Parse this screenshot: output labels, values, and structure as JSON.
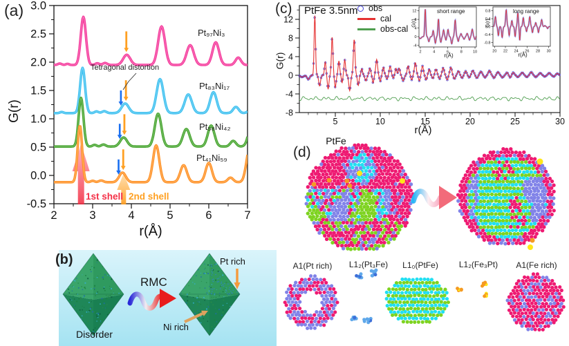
{
  "panels": {
    "a": {
      "tag": "(a)",
      "annotations": [
        {
          "text": "Tetragonal distortion"
        },
        {
          "text": "1st shell",
          "r": 2.7
        },
        {
          "text": "2nd shell",
          "r": 3.8
        }
      ]
    },
    "b": {
      "tag": "(b)",
      "rmc": "RMC",
      "disorder": "Disorder",
      "pt_rich": "Pt rich",
      "ni_rich": "Ni rich"
    },
    "c": {
      "tag": "(c)"
    },
    "d": {
      "tag": "(d)",
      "title": "PtFe",
      "cluster_labels": [
        "A1(Pt rich)",
        "L1₂(Pt₃Fe)",
        "L1₀(PtFe)",
        "L1₂(Fe₃Pt)",
        "A1(Fe rich)"
      ]
    }
  },
  "colors": {
    "pink_curve": "#f5399b",
    "cyan_curve": "#3cc0f0",
    "green_curve": "#44a42c",
    "orange_curve": "#ff9022",
    "obs_blue": "#4444d8",
    "cal_red": "#e53131",
    "diff_green": "#4f9e4f",
    "arrow_blue": "#1a6ff0",
    "arrow_orange": "#ffa022",
    "shell1_red": "#f43047",
    "shell2_orange": "#ffa022",
    "sphere_magenta": "#ee1a72",
    "sphere_periwinkle": "#8183e8",
    "sphere_green": "#7ed321",
    "sphere_cyan": "#22dff2",
    "sphere_orange": "#f59a23",
    "sphere_yellow": "#ffe619",
    "sphere_lightblue": "#5fa8ea",
    "sphere_blue": "#3d6fd8",
    "panel_b_bg_top": "#daf4fb",
    "panel_b_bg_bottom": "#a5e3f2"
  },
  "chart_data": [
    {
      "id": "panel_a",
      "type": "line",
      "title": "",
      "xlabel": "r(Å)",
      "ylabel": "G(r)",
      "xlim": [
        2,
        7
      ],
      "ylim": [
        -0.5,
        3.0
      ],
      "x_ticks": [
        [
          2,
          "2"
        ],
        [
          3,
          "3"
        ],
        [
          4,
          "4"
        ],
        [
          5,
          "5"
        ],
        [
          6,
          "6"
        ],
        [
          7,
          "7"
        ]
      ],
      "y_ticks": [
        [
          3.0,
          "3.0"
        ],
        [
          2.5,
          "2.5"
        ],
        [
          2.0,
          "2.0"
        ],
        [
          1.5,
          "1.5"
        ],
        [
          1.0,
          "1.0"
        ],
        [
          0.5,
          "0.5"
        ],
        [
          0.0,
          "0.0"
        ],
        [
          -0.5,
          "-0.5"
        ]
      ],
      "legend_position": "none",
      "grid": false,
      "series": [
        {
          "name": "Pt₉₇Ni₃",
          "offset": 1.95,
          "color_key": "pink_curve",
          "arrows": {
            "orange": 3.87
          },
          "peaks": [
            [
              2.76,
              0.85,
              0.095
            ],
            [
              2.15,
              0.025,
              0.07
            ],
            [
              2.35,
              0.02,
              0.06
            ],
            [
              3.12,
              0.03,
              0.07
            ],
            [
              3.32,
              0.035,
              0.08
            ],
            [
              3.88,
              0.18,
              0.13
            ],
            [
              4.78,
              0.68,
              0.125
            ],
            [
              5.52,
              0.35,
              0.13
            ],
            [
              6.18,
              0.4,
              0.12
            ],
            [
              6.76,
              0.13,
              0.1
            ]
          ]
        },
        {
          "name": "Pt₈₃Ni₁₇",
          "offset": 1.1,
          "color_key": "cyan_curve",
          "arrows": {
            "blue": 3.73,
            "orange": 3.86
          },
          "peaks": [
            [
              2.74,
              0.8,
              0.09
            ],
            [
              2.2,
              0.02,
              0.06
            ],
            [
              3.1,
              0.03,
              0.07
            ],
            [
              3.3,
              0.035,
              0.08
            ],
            [
              3.84,
              0.17,
              0.13
            ],
            [
              4.74,
              0.6,
              0.125
            ],
            [
              5.47,
              0.33,
              0.13
            ],
            [
              6.12,
              0.37,
              0.12
            ],
            [
              6.7,
              0.11,
              0.1
            ],
            [
              7.2,
              0.35,
              0.13
            ]
          ]
        },
        {
          "name": "Pt₅₈Ni₄₂",
          "offset": 0.51,
          "color_key": "green_curve",
          "arrows": {
            "blue": 3.7,
            "orange": 3.82
          },
          "peaks": [
            [
              2.7,
              0.86,
              0.088
            ],
            [
              3.05,
              0.03,
              0.07
            ],
            [
              3.28,
              0.035,
              0.08
            ],
            [
              3.8,
              0.16,
              0.125
            ],
            [
              4.69,
              0.58,
              0.12
            ],
            [
              5.42,
              0.31,
              0.125
            ],
            [
              6.06,
              0.37,
              0.12
            ],
            [
              6.63,
              0.1,
              0.1
            ],
            [
              7.14,
              0.55,
              0.13
            ]
          ]
        },
        {
          "name": "Pt₄₁Ni₅₉",
          "offset": -0.12,
          "color_key": "orange_curve",
          "arrows": {
            "blue": 3.67,
            "orange": 3.79
          },
          "peaks": [
            [
              2.67,
              1.0,
              0.082
            ],
            [
              3.0,
              0.025,
              0.07
            ],
            [
              3.22,
              0.03,
              0.08
            ],
            [
              3.77,
              0.17,
              0.12
            ],
            [
              4.64,
              0.65,
              0.115
            ],
            [
              5.35,
              0.3,
              0.12
            ],
            [
              6.0,
              0.34,
              0.115
            ],
            [
              6.56,
              0.08,
              0.1
            ],
            [
              7.06,
              0.62,
              0.12
            ]
          ]
        }
      ]
    },
    {
      "id": "panel_c",
      "type": "line",
      "title": "PtFe 3.5nm",
      "xlabel": "r(Å)",
      "ylabel": "G(r)",
      "xlim": [
        1,
        30
      ],
      "ylim": [
        -8.5,
        15.0
      ],
      "x_ticks": [
        [
          5,
          "5"
        ],
        [
          10,
          "10"
        ],
        [
          15,
          "15"
        ],
        [
          20,
          "20"
        ],
        [
          25,
          "25"
        ],
        [
          30,
          "30"
        ]
      ],
      "y_ticks": [
        [
          12,
          "12"
        ],
        [
          8,
          "8"
        ],
        [
          4,
          "4"
        ],
        [
          0,
          "0"
        ],
        [
          -4,
          "-4"
        ],
        [
          -8,
          "-8"
        ]
      ],
      "legend_position": "top-center",
      "series": [
        {
          "name": "obs",
          "type": "scatter",
          "color_key": "obs_blue"
        },
        {
          "name": "cal",
          "type": "line",
          "color_key": "cal_red",
          "peaks": [
            [
              1.3,
              -0.4,
              0.25
            ],
            [
              2.0,
              -0.9,
              0.2
            ],
            [
              2.72,
              12.8,
              0.11
            ],
            [
              3.25,
              -2.3,
              0.14
            ],
            [
              3.88,
              2.8,
              0.12
            ],
            [
              4.2,
              -3.0,
              0.12
            ],
            [
              4.65,
              8.2,
              0.12
            ],
            [
              5.0,
              -2.6,
              0.12
            ],
            [
              5.4,
              3.1,
              0.12
            ],
            [
              5.75,
              -1.6,
              0.1
            ],
            [
              6.05,
              3.3,
              0.12
            ],
            [
              6.6,
              -3.3,
              0.14
            ],
            [
              7.1,
              7.7,
              0.13
            ],
            [
              7.55,
              -2.2,
              0.12
            ],
            [
              7.95,
              1.4,
              0.12
            ],
            [
              8.4,
              -1.2,
              0.14
            ],
            [
              8.85,
              1.5,
              0.14
            ],
            [
              9.2,
              -1.6,
              0.12
            ],
            [
              9.6,
              3.4,
              0.14
            ],
            [
              10.0,
              -1.3,
              0.12
            ],
            [
              10.35,
              1.7,
              0.13
            ],
            [
              10.75,
              -0.8,
              0.12
            ],
            [
              11.1,
              1.9,
              0.14
            ],
            [
              11.45,
              -0.6,
              0.1
            ],
            [
              11.75,
              1.5,
              0.12
            ],
            [
              12.1,
              1.5,
              0.14
            ],
            [
              12.55,
              -1.2,
              0.16
            ],
            [
              13.1,
              2.0,
              0.15
            ],
            [
              13.5,
              -1.0,
              0.12
            ],
            [
              13.9,
              2.7,
              0.15
            ],
            [
              14.35,
              -1.2,
              0.12
            ],
            [
              14.7,
              2.0,
              0.14
            ],
            [
              15.1,
              -1.0,
              0.12
            ],
            [
              15.45,
              1.3,
              0.14
            ],
            [
              15.85,
              -0.7,
              0.12
            ],
            [
              16.2,
              1.3,
              0.15
            ],
            [
              16.6,
              -0.8,
              0.13
            ],
            [
              17.0,
              1.6,
              0.16
            ],
            [
              17.45,
              -1.0,
              0.13
            ],
            [
              17.85,
              1.7,
              0.16
            ],
            [
              18.25,
              -0.8,
              0.14
            ],
            [
              18.7,
              0.9,
              0.16
            ],
            [
              19.1,
              -0.6,
              0.14
            ],
            [
              19.5,
              0.9,
              0.16
            ],
            [
              19.9,
              -0.5,
              0.14
            ],
            [
              20.3,
              1.0,
              0.18
            ],
            [
              20.75,
              -0.6,
              0.15
            ],
            [
              21.2,
              0.8,
              0.18
            ],
            [
              21.65,
              -0.5,
              0.15
            ],
            [
              22.15,
              1.0,
              0.18
            ],
            [
              22.65,
              -0.6,
              0.15
            ],
            [
              23.1,
              0.7,
              0.18
            ],
            [
              23.6,
              -0.5,
              0.16
            ],
            [
              24.1,
              0.6,
              0.16
            ],
            [
              24.45,
              -0.5,
              0.14
            ],
            [
              24.8,
              0.6,
              0.16
            ],
            [
              25.3,
              -0.4,
              0.16
            ],
            [
              25.8,
              0.6,
              0.18
            ],
            [
              26.3,
              -0.4,
              0.16
            ],
            [
              26.8,
              0.7,
              0.18
            ],
            [
              27.3,
              -0.4,
              0.16
            ],
            [
              27.8,
              0.5,
              0.18
            ],
            [
              28.3,
              -0.3,
              0.16
            ],
            [
              28.8,
              0.5,
              0.18
            ],
            [
              29.3,
              -0.3,
              0.16
            ],
            [
              29.7,
              0.4,
              0.18
            ]
          ]
        },
        {
          "name": "obs-cal",
          "type": "line",
          "color_key": "diff_green",
          "offset": -5
        }
      ]
    },
    {
      "id": "inset_short",
      "type": "line",
      "title": "short range",
      "xlabel": "r(Å)",
      "ylabel": "G(r)",
      "xlim": [
        1.8,
        10.2
      ],
      "ylim": [
        -4.8,
        13.8
      ],
      "x_ticks": [
        [
          2,
          "2"
        ],
        [
          4,
          "4"
        ],
        [
          6,
          "6"
        ],
        [
          8,
          "8"
        ],
        [
          10,
          "10"
        ]
      ],
      "y_ticks": [
        [
          12,
          "12"
        ],
        [
          8,
          "8"
        ],
        [
          4,
          "4"
        ],
        [
          0,
          "0"
        ],
        [
          -4,
          "-4"
        ]
      ],
      "series_note": "same obs/cal data as panel_c over 2-10 Å"
    },
    {
      "id": "inset_long",
      "type": "line",
      "title": "long range",
      "xlabel": "r(Å)",
      "ylabel": "G(r)",
      "xlim": [
        19.7,
        30.3
      ],
      "ylim": [
        -1.0,
        1.0
      ],
      "x_ticks": [
        [
          20,
          "20"
        ],
        [
          22,
          "22"
        ],
        [
          24,
          "24"
        ],
        [
          26,
          "26"
        ],
        [
          28,
          "28"
        ],
        [
          30,
          "30"
        ]
      ],
      "y_ticks": [
        [
          0.8,
          "0.8"
        ],
        [
          0.4,
          "0.4"
        ],
        [
          0.0,
          "0.0"
        ],
        [
          -0.4,
          "-0.4"
        ],
        [
          -0.8,
          "-0.8"
        ]
      ],
      "peaks": [
        [
          20.15,
          0.5,
          0.16
        ],
        [
          20.7,
          -0.45,
          0.14
        ],
        [
          21.4,
          -0.55,
          0.16
        ],
        [
          22.15,
          0.85,
          0.16
        ],
        [
          22.7,
          -0.45,
          0.13
        ],
        [
          23.2,
          0.3,
          0.13
        ],
        [
          23.8,
          -0.5,
          0.14
        ],
        [
          24.3,
          0.7,
          0.14
        ],
        [
          24.65,
          -0.7,
          0.12
        ],
        [
          25.3,
          0.45,
          0.15
        ],
        [
          25.9,
          -0.25,
          0.13
        ],
        [
          26.5,
          0.5,
          0.16
        ],
        [
          27.0,
          -0.3,
          0.14
        ],
        [
          27.6,
          0.2,
          0.14
        ],
        [
          28.1,
          -0.3,
          0.14
        ],
        [
          28.7,
          0.35,
          0.16
        ],
        [
          29.3,
          0.05,
          0.14
        ],
        [
          29.8,
          -0.1,
          0.14
        ]
      ]
    }
  ]
}
